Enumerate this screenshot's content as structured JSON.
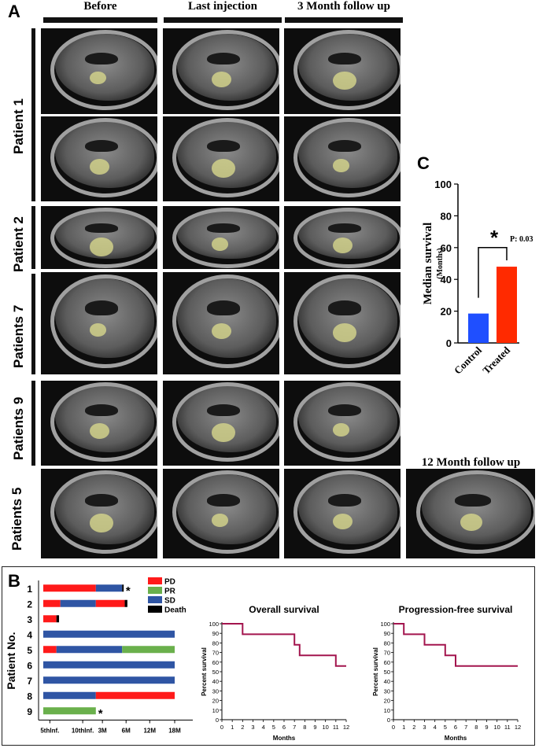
{
  "panel_labels": {
    "a": "A",
    "b": "B",
    "c": "C"
  },
  "columns": {
    "before": "Before",
    "last_injection": "Last injection",
    "three_month": "3 Month follow up",
    "twelve_month": "12 Month follow up"
  },
  "rows": {
    "p1": "Patient 1",
    "p2": "Patient 2",
    "p7": "Patients 7",
    "p9": "Patients 9",
    "p5": "Patients 5"
  },
  "chart_data": [
    {
      "type": "bar",
      "categories": [
        "Control",
        "Treated"
      ],
      "values": [
        18.5,
        48
      ],
      "ylabel": "Median survival",
      "ylabel_sub": "(Months)",
      "ylim": [
        0,
        100
      ],
      "yticks": [
        0,
        20,
        40,
        60,
        80,
        100
      ],
      "colors": [
        "#1f4fff",
        "#ff2a00"
      ],
      "significance": {
        "marker": "*",
        "text": "P: 0.03"
      }
    },
    {
      "type": "bar",
      "orientation": "horizontal-stacked",
      "ylabel": "Patient No.",
      "patients": [
        "1",
        "2",
        "3",
        "4",
        "5",
        "6",
        "7",
        "8",
        "9"
      ],
      "xticks": [
        "5thInf.",
        "10thInf.",
        "3M",
        "6M",
        "12M",
        "18M"
      ],
      "legend": [
        {
          "label": "PD",
          "color": "#ff1a1a"
        },
        {
          "label": "PR",
          "color": "#6ab04c"
        },
        {
          "label": "SD",
          "color": "#2f55a4"
        },
        {
          "label": "Death",
          "color": "#000000"
        }
      ],
      "segments": [
        [
          {
            "s": "PD",
            "from": 0,
            "to": 0.4
          },
          {
            "s": "SD",
            "from": 0.4,
            "to": 0.6
          },
          {
            "s": "Death",
            "from": 0.6,
            "to": 0.61
          }
        ],
        [
          {
            "s": "PD",
            "from": 0,
            "to": 0.13
          },
          {
            "s": "SD",
            "from": 0.13,
            "to": 0.4
          },
          {
            "s": "PD",
            "from": 0.4,
            "to": 0.62
          },
          {
            "s": "Death",
            "from": 0.62,
            "to": 0.64
          }
        ],
        [
          {
            "s": "PD",
            "from": 0,
            "to": 0.1
          },
          {
            "s": "Death",
            "from": 0.1,
            "to": 0.12
          }
        ],
        [
          {
            "s": "SD",
            "from": 0,
            "to": 1
          }
        ],
        [
          {
            "s": "PD",
            "from": 0,
            "to": 0.1
          },
          {
            "s": "SD",
            "from": 0.1,
            "to": 0.6
          },
          {
            "s": "PR",
            "from": 0.6,
            "to": 1
          }
        ],
        [
          {
            "s": "SD",
            "from": 0,
            "to": 1
          }
        ],
        [
          {
            "s": "SD",
            "from": 0,
            "to": 1
          }
        ],
        [
          {
            "s": "SD",
            "from": 0,
            "to": 0.4
          },
          {
            "s": "PD",
            "from": 0.4,
            "to": 1
          }
        ],
        [
          {
            "s": "PR",
            "from": 0,
            "to": 0.4
          }
        ]
      ],
      "asterisks": [
        "1",
        "9"
      ]
    },
    {
      "type": "line",
      "step": true,
      "title": "Overall survival",
      "xlabel": "Months",
      "ylabel": "Percent survival",
      "xlim": [
        0,
        12
      ],
      "ylim": [
        0,
        100
      ],
      "color": "#a3154e",
      "x": [
        0,
        2,
        2,
        7,
        7,
        7.5,
        7.5,
        11,
        11,
        12
      ],
      "y": [
        100,
        100,
        89,
        89,
        78,
        78,
        67,
        67,
        56,
        56
      ]
    },
    {
      "type": "line",
      "step": true,
      "title": "Progression-free survival",
      "xlabel": "Months",
      "ylabel": "Percent survival",
      "xlim": [
        0,
        12
      ],
      "ylim": [
        0,
        100
      ],
      "color": "#a3154e",
      "x": [
        0,
        1,
        1,
        3,
        3,
        5,
        5,
        6,
        6,
        12
      ],
      "y": [
        100,
        100,
        89,
        89,
        78,
        78,
        67,
        67,
        56,
        56
      ]
    }
  ]
}
